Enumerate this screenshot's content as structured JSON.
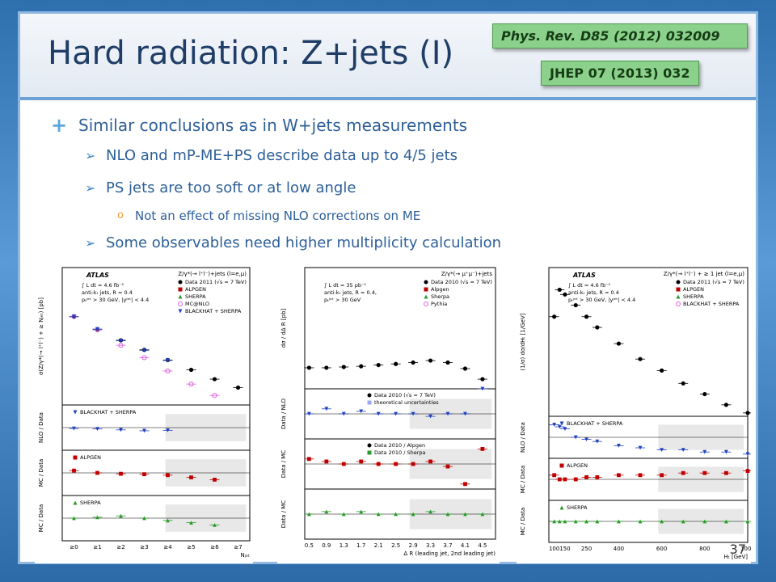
{
  "slide": {
    "title": "Hard radiation: Z+jets (I)",
    "references": [
      "Phys. Rev. D85 (2012) 032009",
      "JHEP 07 (2013) 032"
    ],
    "bullets": [
      {
        "level": 1,
        "marker": "+",
        "text": "Similar conclusions as in W+jets measurements"
      },
      {
        "level": 2,
        "marker": "➢",
        "text": "NLO and mP-ME+PS describe data up to 4/5 jets"
      },
      {
        "level": 2,
        "marker": "➢",
        "text": "PS jets are too soft or at low angle"
      },
      {
        "level": 3,
        "marker": "o",
        "text": "Not an effect of missing NLO corrections on ME"
      },
      {
        "level": 2,
        "marker": "➢",
        "text": "Some observables need higher multiplicity calculation"
      }
    ],
    "page_number": "37"
  },
  "chart_data": [
    {
      "type": "scatter",
      "title": "Z/γ*(→ l⁺l⁻)+jets (l=e,μ)",
      "experiment": "ATLAS",
      "annotations": [
        "∫ L dt = 4.6 fb⁻¹",
        "anti-kₜ jets, R = 0.4",
        "pₜʲᵉᵗ > 30 GeV, |yʲᵉᵗ| < 4.4"
      ],
      "xlabel": "Nⱼₑₜ",
      "ylabel": "σ(Z/γ*(→ l⁺l⁻) + ≥ Nⱼₑₜ) [pb]",
      "categories": [
        "≥0",
        "≥1",
        "≥2",
        "≥3",
        "≥4",
        "≥5",
        "≥6",
        "≥7"
      ],
      "ylog": true,
      "ylim": [
        0.0005,
        1000000
      ],
      "legend": [
        "Data 2011 (√s = 7 TeV)",
        "ALPGEN",
        "SHERPA",
        "MC@NLO",
        "BLACKHAT + SHERPA"
      ],
      "series": [
        {
          "name": "Data 2011 (√s = 7 TeV)",
          "values": [
            480,
            68,
            12,
            2.7,
            0.55,
            0.12,
            0.028,
            0.0075
          ]
        },
        {
          "name": "MC@NLO",
          "values": [
            480,
            60,
            5.5,
            0.8,
            0.1,
            0.013,
            0.0022
          ]
        },
        {
          "name": "BLACKHAT + SHERPA",
          "values": [
            470,
            66,
            11,
            2.5,
            0.52
          ]
        }
      ],
      "ratio_panels": [
        {
          "ylabel": "NLO / Data",
          "label": "BLACKHAT + SHERPA",
          "values": [
            0.98,
            0.97,
            0.95,
            0.93,
            0.94
          ]
        },
        {
          "ylabel": "MC / Data",
          "label": "ALPGEN",
          "values": [
            1.05,
            1.0,
            0.98,
            0.97,
            0.95,
            0.9,
            0.85
          ]
        },
        {
          "ylabel": "MC / Data",
          "label": "SHERPA",
          "values": [
            1.0,
            1.02,
            1.05,
            1.0,
            0.95,
            0.9,
            0.85
          ]
        }
      ]
    },
    {
      "type": "scatter",
      "title": "Z/γ*(→ μ⁺μ⁻)+jets",
      "annotations": [
        "∫ L dt = 35 pb⁻¹",
        "anti-kₜ jets, R = 0.4,",
        "pₜʲᵉᵗ > 30 GeV"
      ],
      "xlabel": "Δ R (leading jet, 2nd leading jet)",
      "ylabel": "dσ / dΔ R [pb]",
      "x": [
        0.5,
        0.9,
        1.3,
        1.7,
        2.1,
        2.5,
        2.9,
        3.3,
        3.7,
        4.1,
        4.5
      ],
      "xlim": [
        0.4,
        4.8
      ],
      "ylog": true,
      "ylim": [
        0.1,
        100000
      ],
      "legend": [
        "Data 2010 (√s = 7 TeV)",
        "Alpgen",
        "Sherpa",
        "Pythia"
      ],
      "series": [
        {
          "name": "Data 2010 (√s = 7 TeV)",
          "values": [
            1.1,
            1.1,
            1.2,
            1.3,
            1.5,
            1.7,
            2.0,
            2.5,
            2.0,
            1.0,
            0.3
          ]
        }
      ],
      "ratio_panels": [
        {
          "ylabel": "Data / NLO",
          "legend": [
            "Data 2010 (√s = 7 TeV)",
            "theoretical uncertainties"
          ],
          "values": [
            1.0,
            1.1,
            1.0,
            1.05,
            1.0,
            1.0,
            1.0,
            0.95,
            1.0,
            1.0,
            2.5
          ]
        },
        {
          "ylabel": "Data / MC",
          "legend": [
            "Data 2010 / Alpgen",
            "Data 2010 / Sherpa"
          ],
          "values": [
            1.1,
            1.05,
            1.0,
            1.05,
            1.0,
            1.0,
            1.0,
            1.05,
            0.95,
            0.6,
            1.3
          ]
        },
        {
          "ylabel": "Data / MC",
          "values": [
            1.0,
            1.05,
            1.0,
            1.05,
            1.0,
            1.0,
            1.0,
            1.05,
            1.0,
            1.0,
            1.0
          ]
        }
      ]
    },
    {
      "type": "scatter",
      "title": "Z/γ*(→ l⁺l⁻) + ≥ 1 jet (l=e,μ)",
      "experiment": "ATLAS",
      "annotations": [
        "∫ L dt = 4.6 fb⁻¹",
        "anti-kₜ jets, R = 0.4",
        "pₜʲᵉᵗ > 30 GeV, |yʲᵉᵗ| < 4.4"
      ],
      "xlabel": "Hₜ [GeV]",
      "ylabel": "(1/σ) dσ/dHₜ [1/GeV]",
      "x": [
        100,
        125,
        150,
        200,
        250,
        300,
        400,
        500,
        600,
        700,
        800,
        900,
        1000
      ],
      "xlim": [
        75,
        1000
      ],
      "ylog": true,
      "ylim": [
        3e-07,
        0.1
      ],
      "legend": [
        "Data 2011 (√s = 7 TeV)",
        "ALPGEN",
        "SHERPA",
        "BLACKHAT + SHERPA"
      ],
      "series": [
        {
          "name": "Data 2011 (√s = 7 TeV)",
          "values": [
            0.0015,
            0.015,
            0.01,
            0.004,
            0.0015,
            0.0006,
            0.00015,
            4e-05,
            1.5e-05,
            5e-06,
            2e-06,
            8e-07,
            4e-07
          ]
        }
      ],
      "ratio_panels": [
        {
          "ylabel": "NLO / Data",
          "label": "BLACKHAT + SHERPA",
          "values": [
            1.3,
            1.25,
            1.2,
            1.0,
            0.95,
            0.9,
            0.8,
            0.75,
            0.7,
            0.7,
            0.65,
            0.65,
            0.6
          ]
        },
        {
          "ylabel": "MC / Data",
          "label": "ALPGEN",
          "values": [
            1.1,
            1.0,
            1.0,
            1.0,
            1.05,
            1.05,
            1.1,
            1.1,
            1.1,
            1.15,
            1.15,
            1.15,
            1.2
          ]
        },
        {
          "ylabel": "MC / Data",
          "label": "SHERPA",
          "values": [
            1.0,
            1.0,
            1.0,
            1.0,
            1.0,
            1.0,
            1.0,
            1.0,
            1.0,
            1.0,
            1.0,
            1.0,
            1.0
          ]
        }
      ]
    }
  ]
}
